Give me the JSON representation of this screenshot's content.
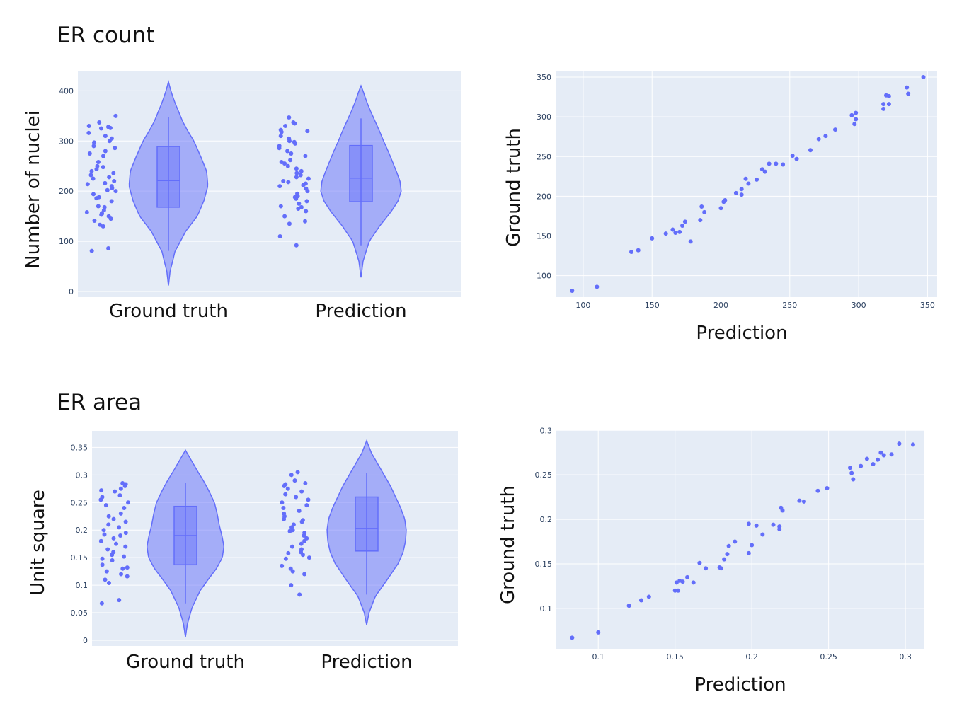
{
  "colors": {
    "plot_bg": "#e5ecf6",
    "grid": "#ffffff",
    "marker": "#636efa"
  },
  "sections": [
    {
      "title": "ER count"
    },
    {
      "title": "ER area"
    }
  ],
  "chart_data": [
    {
      "type": "violin",
      "panel": "ER count distribution",
      "ylabel": "Number of nuclei",
      "categories": [
        "Ground truth",
        "Prediction"
      ],
      "ylim": [
        0,
        440
      ],
      "yticks": [
        0,
        100,
        200,
        300,
        400
      ],
      "ytick_labels": [
        "0",
        "100",
        "200",
        "300",
        "400"
      ],
      "violins": [
        {
          "name": "Ground truth",
          "kde_min": 12,
          "kde_max": 418,
          "kde_y": [
            12,
            40,
            80,
            120,
            150,
            180,
            210,
            240,
            270,
            300,
            320,
            340,
            360,
            380,
            400,
            418
          ],
          "kde_width": [
            0,
            0.04,
            0.16,
            0.42,
            0.7,
            0.86,
            0.96,
            0.93,
            0.78,
            0.62,
            0.47,
            0.34,
            0.24,
            0.14,
            0.06,
            0
          ],
          "box": {
            "q1": 168,
            "median": 221,
            "q3": 289,
            "lower_fence": 81,
            "upper_fence": 348
          },
          "points": [
            81,
            86,
            130,
            133,
            141,
            145,
            150,
            153,
            155,
            156,
            158,
            162,
            168,
            170,
            180,
            186,
            188,
            194,
            200,
            202,
            206,
            210,
            214,
            216,
            220,
            225,
            228,
            232,
            236,
            240,
            244,
            248,
            250,
            258,
            270,
            275,
            280,
            286,
            290,
            297,
            300,
            305,
            310,
            316,
            325,
            326,
            328,
            330,
            337,
            350
          ]
        },
        {
          "name": "Prediction",
          "kde_min": 28,
          "kde_max": 410,
          "kde_y": [
            28,
            60,
            100,
            130,
            160,
            180,
            200,
            220,
            240,
            260,
            280,
            300,
            320,
            340,
            360,
            380,
            400,
            410
          ],
          "kde_width": [
            0,
            0.05,
            0.2,
            0.45,
            0.74,
            0.9,
            0.98,
            0.95,
            0.86,
            0.76,
            0.66,
            0.55,
            0.45,
            0.34,
            0.23,
            0.13,
            0.05,
            0
          ],
          "box": {
            "q1": 179,
            "median": 226,
            "q3": 291,
            "lower_fence": 92,
            "upper_fence": 345
          },
          "points": [
            92,
            110,
            135,
            140,
            150,
            160,
            165,
            168,
            170,
            175,
            180,
            185,
            188,
            190,
            195,
            200,
            205,
            210,
            212,
            215,
            218,
            220,
            225,
            228,
            232,
            236,
            240,
            245,
            250,
            255,
            258,
            262,
            270,
            275,
            280,
            286,
            290,
            295,
            298,
            300,
            305,
            310,
            318,
            320,
            322,
            330,
            335,
            337,
            347
          ]
        }
      ]
    },
    {
      "type": "scatter",
      "panel": "ER count agreement",
      "xlabel": "Prediction",
      "ylabel": "Ground truth",
      "xlim": [
        80,
        357
      ],
      "ylim": [
        73,
        358
      ],
      "xticks": [
        100,
        150,
        200,
        250,
        300,
        350
      ],
      "xtick_labels": [
        "100",
        "150",
        "200",
        "250",
        "300",
        "350"
      ],
      "yticks": [
        100,
        150,
        200,
        250,
        300,
        350
      ],
      "ytick_labels": [
        "100",
        "150",
        "200",
        "250",
        "300",
        "350"
      ],
      "points": [
        [
          92,
          81
        ],
        [
          110,
          86
        ],
        [
          135,
          130
        ],
        [
          140,
          132
        ],
        [
          150,
          147
        ],
        [
          160,
          153
        ],
        [
          165,
          158
        ],
        [
          167,
          154
        ],
        [
          170,
          155
        ],
        [
          172,
          163
        ],
        [
          174,
          168
        ],
        [
          178,
          143
        ],
        [
          185,
          170
        ],
        [
          186,
          187
        ],
        [
          188,
          180
        ],
        [
          200,
          185
        ],
        [
          202,
          193
        ],
        [
          203,
          195
        ],
        [
          211,
          204
        ],
        [
          215,
          209
        ],
        [
          215,
          202
        ],
        [
          218,
          222
        ],
        [
          220,
          216
        ],
        [
          226,
          221
        ],
        [
          230,
          234
        ],
        [
          232,
          231
        ],
        [
          235,
          241
        ],
        [
          240,
          241
        ],
        [
          245,
          240
        ],
        [
          252,
          251
        ],
        [
          255,
          247
        ],
        [
          265,
          258
        ],
        [
          271,
          272
        ],
        [
          276,
          276
        ],
        [
          283,
          284
        ],
        [
          295,
          302
        ],
        [
          297,
          291
        ],
        [
          298,
          305
        ],
        [
          298,
          297
        ],
        [
          318,
          310
        ],
        [
          318,
          316
        ],
        [
          320,
          327
        ],
        [
          322,
          316
        ],
        [
          322,
          326
        ],
        [
          335,
          337
        ],
        [
          336,
          329
        ],
        [
          347,
          350
        ]
      ]
    },
    {
      "type": "violin",
      "panel": "ER area distribution",
      "ylabel": "Unit square",
      "categories": [
        "Ground truth",
        "Prediction"
      ],
      "ylim": [
        0,
        0.38
      ],
      "yticks": [
        0,
        0.05,
        0.1,
        0.15,
        0.2,
        0.25,
        0.3,
        0.35
      ],
      "ytick_labels": [
        "0",
        "0.05",
        "0.1",
        "0.15",
        "0.2",
        "0.25",
        "0.3",
        "0.35"
      ],
      "violins": [
        {
          "name": "Ground truth",
          "kde_min": 0.006,
          "kde_max": 0.345,
          "kde_y": [
            0.006,
            0.03,
            0.06,
            0.09,
            0.11,
            0.13,
            0.15,
            0.17,
            0.19,
            0.21,
            0.23,
            0.25,
            0.27,
            0.29,
            0.31,
            0.33,
            0.345
          ],
          "kde_width": [
            0,
            0.05,
            0.17,
            0.37,
            0.57,
            0.78,
            0.93,
            0.97,
            0.92,
            0.85,
            0.8,
            0.73,
            0.6,
            0.45,
            0.28,
            0.12,
            0
          ],
          "box": {
            "q1": 0.137,
            "median": 0.19,
            "q3": 0.243,
            "lower_fence": 0.067,
            "upper_fence": 0.285
          },
          "points": [
            0.067,
            0.073,
            0.104,
            0.11,
            0.116,
            0.12,
            0.125,
            0.13,
            0.132,
            0.137,
            0.145,
            0.148,
            0.152,
            0.155,
            0.16,
            0.165,
            0.17,
            0.175,
            0.18,
            0.185,
            0.19,
            0.192,
            0.195,
            0.2,
            0.205,
            0.21,
            0.215,
            0.22,
            0.225,
            0.23,
            0.24,
            0.245,
            0.25,
            0.255,
            0.26,
            0.263,
            0.27,
            0.272,
            0.275,
            0.28,
            0.283,
            0.285
          ]
        },
        {
          "name": "Prediction",
          "kde_min": 0.028,
          "kde_max": 0.362,
          "kde_y": [
            0.028,
            0.05,
            0.08,
            0.11,
            0.14,
            0.16,
            0.18,
            0.2,
            0.22,
            0.24,
            0.26,
            0.28,
            0.3,
            0.32,
            0.34,
            0.362
          ],
          "kde_width": [
            0,
            0.06,
            0.22,
            0.52,
            0.8,
            0.92,
            0.98,
            1.0,
            0.96,
            0.86,
            0.73,
            0.6,
            0.44,
            0.28,
            0.12,
            0
          ],
          "box": {
            "q1": 0.162,
            "median": 0.203,
            "q3": 0.26,
            "lower_fence": 0.083,
            "upper_fence": 0.304
          },
          "points": [
            0.083,
            0.1,
            0.12,
            0.125,
            0.13,
            0.135,
            0.148,
            0.15,
            0.155,
            0.158,
            0.16,
            0.165,
            0.17,
            0.175,
            0.18,
            0.185,
            0.19,
            0.195,
            0.198,
            0.2,
            0.205,
            0.21,
            0.215,
            0.218,
            0.22,
            0.225,
            0.23,
            0.235,
            0.24,
            0.245,
            0.25,
            0.255,
            0.26,
            0.265,
            0.27,
            0.275,
            0.28,
            0.283,
            0.285,
            0.29,
            0.3,
            0.305
          ]
        }
      ]
    },
    {
      "type": "scatter",
      "panel": "ER area agreement",
      "xlabel": "Prediction",
      "ylabel": "Ground truth",
      "xlim": [
        0.0727,
        0.3124
      ],
      "ylim": [
        0.0546,
        0.3002
      ],
      "xticks": [
        0.1,
        0.15,
        0.2,
        0.25,
        0.3
      ],
      "xtick_labels": [
        "0.1",
        "0.15",
        "0.2",
        "0.25",
        "0.3"
      ],
      "yticks": [
        0.1,
        0.15,
        0.2,
        0.25,
        0.3
      ],
      "ytick_labels": [
        "0.1",
        "0.15",
        "0.2",
        "0.25",
        "0.3"
      ],
      "points": [
        [
          0.083,
          0.067
        ],
        [
          0.1,
          0.073
        ],
        [
          0.12,
          0.103
        ],
        [
          0.128,
          0.109
        ],
        [
          0.133,
          0.113
        ],
        [
          0.15,
          0.12
        ],
        [
          0.151,
          0.129
        ],
        [
          0.152,
          0.12
        ],
        [
          0.153,
          0.131
        ],
        [
          0.155,
          0.13
        ],
        [
          0.158,
          0.135
        ],
        [
          0.162,
          0.129
        ],
        [
          0.166,
          0.151
        ],
        [
          0.17,
          0.145
        ],
        [
          0.179,
          0.146
        ],
        [
          0.18,
          0.145
        ],
        [
          0.182,
          0.155
        ],
        [
          0.184,
          0.161
        ],
        [
          0.185,
          0.17
        ],
        [
          0.189,
          0.175
        ],
        [
          0.198,
          0.195
        ],
        [
          0.198,
          0.162
        ],
        [
          0.2,
          0.171
        ],
        [
          0.203,
          0.193
        ],
        [
          0.207,
          0.183
        ],
        [
          0.214,
          0.194
        ],
        [
          0.218,
          0.192
        ],
        [
          0.218,
          0.189
        ],
        [
          0.219,
          0.213
        ],
        [
          0.22,
          0.21
        ],
        [
          0.231,
          0.221
        ],
        [
          0.234,
          0.22
        ],
        [
          0.243,
          0.232
        ],
        [
          0.249,
          0.235
        ],
        [
          0.264,
          0.258
        ],
        [
          0.265,
          0.252
        ],
        [
          0.266,
          0.245
        ],
        [
          0.271,
          0.26
        ],
        [
          0.275,
          0.268
        ],
        [
          0.279,
          0.262
        ],
        [
          0.282,
          0.267
        ],
        [
          0.284,
          0.275
        ],
        [
          0.286,
          0.272
        ],
        [
          0.291,
          0.273
        ],
        [
          0.296,
          0.285
        ],
        [
          0.305,
          0.284
        ]
      ]
    }
  ]
}
